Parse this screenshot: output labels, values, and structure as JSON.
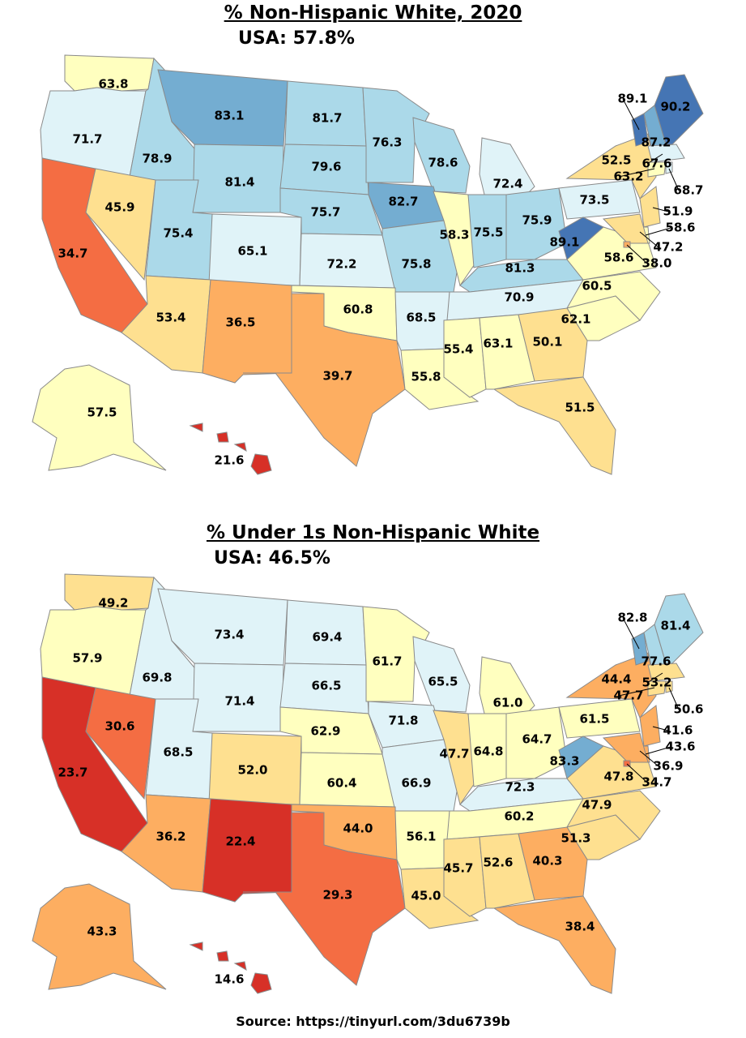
{
  "colors": {
    "ocean": "#ffffff",
    "border": "#8a8a8a",
    "scale": [
      "#d73027",
      "#f46d43",
      "#fdae61",
      "#fee090",
      "#ffffbf",
      "#e0f3f8",
      "#abd9e9",
      "#74add1",
      "#4575b4"
    ]
  },
  "maps": [
    {
      "title": "% Non-Hispanic White, 2020",
      "usa_label": "USA: 57.8%",
      "states": [
        {
          "id": "WA",
          "value": "63.8"
        },
        {
          "id": "OR",
          "value": "71.7"
        },
        {
          "id": "ID",
          "value": "78.9"
        },
        {
          "id": "MT",
          "value": "83.1"
        },
        {
          "id": "WY",
          "value": "81.4"
        },
        {
          "id": "ND",
          "value": "81.7"
        },
        {
          "id": "SD",
          "value": "79.6"
        },
        {
          "id": "NE",
          "value": "75.7"
        },
        {
          "id": "MN",
          "value": "76.3"
        },
        {
          "id": "WI",
          "value": "78.6"
        },
        {
          "id": "MI",
          "value": "72.4"
        },
        {
          "id": "IA",
          "value": "82.7"
        },
        {
          "id": "CA",
          "value": "34.7"
        },
        {
          "id": "NV",
          "value": "45.9"
        },
        {
          "id": "UT",
          "value": "75.4"
        },
        {
          "id": "CO",
          "value": "65.1"
        },
        {
          "id": "KS",
          "value": "72.2"
        },
        {
          "id": "MO",
          "value": "75.8"
        },
        {
          "id": "IL",
          "value": "58.3"
        },
        {
          "id": "IN",
          "value": "75.5"
        },
        {
          "id": "OH",
          "value": "75.9"
        },
        {
          "id": "PA",
          "value": "73.5"
        },
        {
          "id": "NY",
          "value": "52.5"
        },
        {
          "id": "KY",
          "value": "81.3"
        },
        {
          "id": "WV",
          "value": "89.1"
        },
        {
          "id": "VA",
          "value": "58.6"
        },
        {
          "id": "AZ",
          "value": "53.4"
        },
        {
          "id": "NM",
          "value": "36.5"
        },
        {
          "id": "OK",
          "value": "60.8"
        },
        {
          "id": "AR",
          "value": "68.5"
        },
        {
          "id": "TN",
          "value": "70.9"
        },
        {
          "id": "NC",
          "value": "60.5"
        },
        {
          "id": "SC",
          "value": "62.1"
        },
        {
          "id": "TX",
          "value": "39.7"
        },
        {
          "id": "LA",
          "value": "55.8"
        },
        {
          "id": "MS",
          "value": "55.4"
        },
        {
          "id": "AL",
          "value": "63.1"
        },
        {
          "id": "GA",
          "value": "50.1"
        },
        {
          "id": "FL",
          "value": "51.5"
        },
        {
          "id": "AK",
          "value": "57.5"
        },
        {
          "id": "HI",
          "value": "21.6"
        },
        {
          "id": "VT",
          "value": "89.1"
        },
        {
          "id": "ME",
          "value": "90.2"
        },
        {
          "id": "NH",
          "value": "87.2"
        },
        {
          "id": "MA",
          "value": "67.6"
        },
        {
          "id": "CT",
          "value": "63.2"
        },
        {
          "id": "RI",
          "value": "68.7"
        },
        {
          "id": "NJ",
          "value": "51.9"
        },
        {
          "id": "DE",
          "value": "58.6"
        },
        {
          "id": "MD",
          "value": "47.2"
        },
        {
          "id": "DC",
          "value": "38.0"
        }
      ]
    },
    {
      "title": "% Under 1s Non-Hispanic White",
      "usa_label": "USA: 46.5%",
      "states": [
        {
          "id": "WA",
          "value": "49.2"
        },
        {
          "id": "OR",
          "value": "57.9"
        },
        {
          "id": "ID",
          "value": "69.8"
        },
        {
          "id": "MT",
          "value": "73.4"
        },
        {
          "id": "WY",
          "value": "71.4"
        },
        {
          "id": "ND",
          "value": "69.4"
        },
        {
          "id": "SD",
          "value": "66.5"
        },
        {
          "id": "NE",
          "value": "62.9"
        },
        {
          "id": "MN",
          "value": "61.7"
        },
        {
          "id": "WI",
          "value": "65.5"
        },
        {
          "id": "MI",
          "value": "61.0"
        },
        {
          "id": "IA",
          "value": "71.8"
        },
        {
          "id": "CA",
          "value": "23.7"
        },
        {
          "id": "NV",
          "value": "30.6"
        },
        {
          "id": "UT",
          "value": "68.5"
        },
        {
          "id": "CO",
          "value": "52.0"
        },
        {
          "id": "KS",
          "value": "60.4"
        },
        {
          "id": "MO",
          "value": "66.9"
        },
        {
          "id": "IL",
          "value": "47.7"
        },
        {
          "id": "IN",
          "value": "64.8"
        },
        {
          "id": "OH",
          "value": "64.7"
        },
        {
          "id": "PA",
          "value": "61.5"
        },
        {
          "id": "NY",
          "value": "44.4"
        },
        {
          "id": "KY",
          "value": "72.3"
        },
        {
          "id": "WV",
          "value": "83.3"
        },
        {
          "id": "VA",
          "value": "47.8"
        },
        {
          "id": "AZ",
          "value": "36.2"
        },
        {
          "id": "NM",
          "value": "22.4"
        },
        {
          "id": "OK",
          "value": "44.0"
        },
        {
          "id": "AR",
          "value": "56.1"
        },
        {
          "id": "TN",
          "value": "60.2"
        },
        {
          "id": "NC",
          "value": "47.9"
        },
        {
          "id": "SC",
          "value": "51.3"
        },
        {
          "id": "TX",
          "value": "29.3"
        },
        {
          "id": "LA",
          "value": "45.0"
        },
        {
          "id": "MS",
          "value": "45.7"
        },
        {
          "id": "AL",
          "value": "52.6"
        },
        {
          "id": "GA",
          "value": "40.3"
        },
        {
          "id": "FL",
          "value": "38.4"
        },
        {
          "id": "AK",
          "value": "43.3"
        },
        {
          "id": "HI",
          "value": "14.6"
        },
        {
          "id": "VT",
          "value": "82.8"
        },
        {
          "id": "ME",
          "value": "81.4"
        },
        {
          "id": "NH",
          "value": "77.6"
        },
        {
          "id": "MA",
          "value": "53.2"
        },
        {
          "id": "CT",
          "value": "47.7"
        },
        {
          "id": "RI",
          "value": "50.6"
        },
        {
          "id": "NJ",
          "value": "41.6"
        },
        {
          "id": "DE",
          "value": "43.6"
        },
        {
          "id": "MD",
          "value": "36.9"
        },
        {
          "id": "DC",
          "value": "34.7"
        }
      ]
    }
  ],
  "source": "Source: https://tinyurl.com/3du6739b"
}
